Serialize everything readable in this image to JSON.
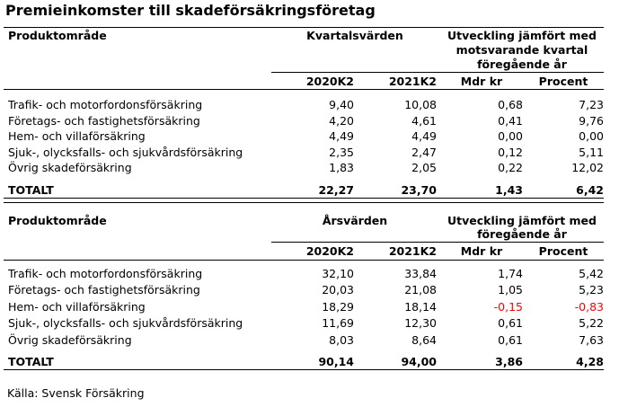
{
  "title": "Premieinkomster till skadeförsäkringsföretag",
  "tables": [
    {
      "area_header": "Produktområde",
      "group1_header": "Kvartalsvärden",
      "group2_header_lines": [
        "Utveckling jämfört med",
        "motsvarande kvartal",
        "föregående år"
      ],
      "columns": [
        "2020K2",
        "2021K2",
        "Mdr kr",
        "Procent"
      ],
      "rows": [
        {
          "label": "Trafik- och motorfordonsförsäkring",
          "values": [
            "9,40",
            "10,08",
            "0,68",
            "7,23"
          ]
        },
        {
          "label": "Företags- och fastighetsförsäkring",
          "values": [
            "4,20",
            "4,61",
            "0,41",
            "9,76"
          ]
        },
        {
          "label": "Hem- och villaförsäkring",
          "values": [
            "4,49",
            "4,49",
            "0,00",
            "0,00"
          ]
        },
        {
          "label": "Sjuk-, olycksfalls- och sjukvårdsförsäkring",
          "values": [
            "2,35",
            "2,47",
            "0,12",
            "5,11"
          ]
        },
        {
          "label": "Övrig skadeförsäkring",
          "values": [
            "1,83",
            "2,05",
            "0,22",
            "12,02"
          ]
        }
      ],
      "total": {
        "label": "TOTALT",
        "values": [
          "22,27",
          "23,70",
          "1,43",
          "6,42"
        ]
      }
    },
    {
      "area_header": "Produktområde",
      "group1_header": "Årsvärden",
      "group2_header_lines": [
        "Utveckling jämfört med",
        "föregående år"
      ],
      "columns": [
        "2020K2",
        "2021K2",
        "Mdr kr",
        "Procent"
      ],
      "rows": [
        {
          "label": "Trafik- och motorfordonsförsäkring",
          "values": [
            "32,10",
            "33,84",
            "1,74",
            "5,42"
          ]
        },
        {
          "label": "Företags- och fastighetsförsäkring",
          "values": [
            "20,03",
            "21,08",
            "1,05",
            "5,23"
          ]
        },
        {
          "label": "Hem- och villaförsäkring",
          "values": [
            "18,29",
            "18,14",
            "-0,15",
            "-0,83"
          ]
        },
        {
          "label": "Sjuk-, olycksfalls- och sjukvårdsförsäkring",
          "values": [
            "11,69",
            "12,30",
            "0,61",
            "5,22"
          ]
        },
        {
          "label": "Övrig skadeförsäkring",
          "values": [
            "8,03",
            "8,64",
            "0,61",
            "7,63"
          ]
        }
      ],
      "total": {
        "label": "TOTALT",
        "values": [
          "90,14",
          "94,00",
          "3,86",
          "4,28"
        ]
      }
    }
  ],
  "source": "Källa: Svensk Försäkring",
  "negative_color": "#ff0000"
}
